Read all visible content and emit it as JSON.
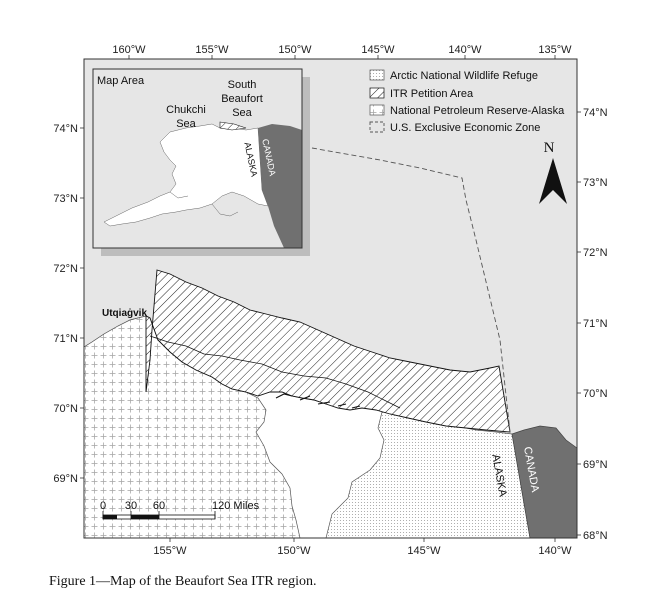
{
  "axes": {
    "top_lon": [
      "160°W",
      "155°W",
      "150°W",
      "145°W",
      "140°W",
      "135°W"
    ],
    "bottom_lon": [
      "155°W",
      "150°W",
      "145°W",
      "140°W"
    ],
    "left_lat": [
      "74°N",
      "73°N",
      "72°N",
      "71°N",
      "70°N",
      "69°N"
    ],
    "right_lat": [
      "74°N",
      "73°N",
      "72°N",
      "71°N",
      "70°N",
      "69°N",
      "68°N"
    ]
  },
  "legend": [
    {
      "label": "Arctic National Wildlife Refuge",
      "symbol": "dots"
    },
    {
      "label": "ITR Petition Area",
      "symbol": "hatch"
    },
    {
      "label": "National Petroleum Reserve-Alaska",
      "symbol": "cross"
    },
    {
      "label": "U.S. Exclusive Economic Zone",
      "symbol": "dashed"
    }
  ],
  "north_arrow": {
    "label": "N"
  },
  "inset": {
    "title": "Map Area",
    "chukchi": [
      "Chukchi",
      "Sea"
    ],
    "beaufort": [
      "South",
      "Beaufort",
      "Sea"
    ],
    "alaska": "ALASKA",
    "canada": "CANADA"
  },
  "places": {
    "utqiagvik": "Utqiaġvik",
    "alaska": "ALASKA",
    "canada": "CANADA"
  },
  "scalebar": {
    "ticks": [
      "0",
      "30",
      "60",
      "120 Miles"
    ]
  },
  "colors": {
    "sea": "#e6e6e6",
    "land": "#ffffff",
    "canada": "#707070",
    "frame": "#333333"
  },
  "caption": "Figure 1—Map of the Beaufort Sea ITR region."
}
